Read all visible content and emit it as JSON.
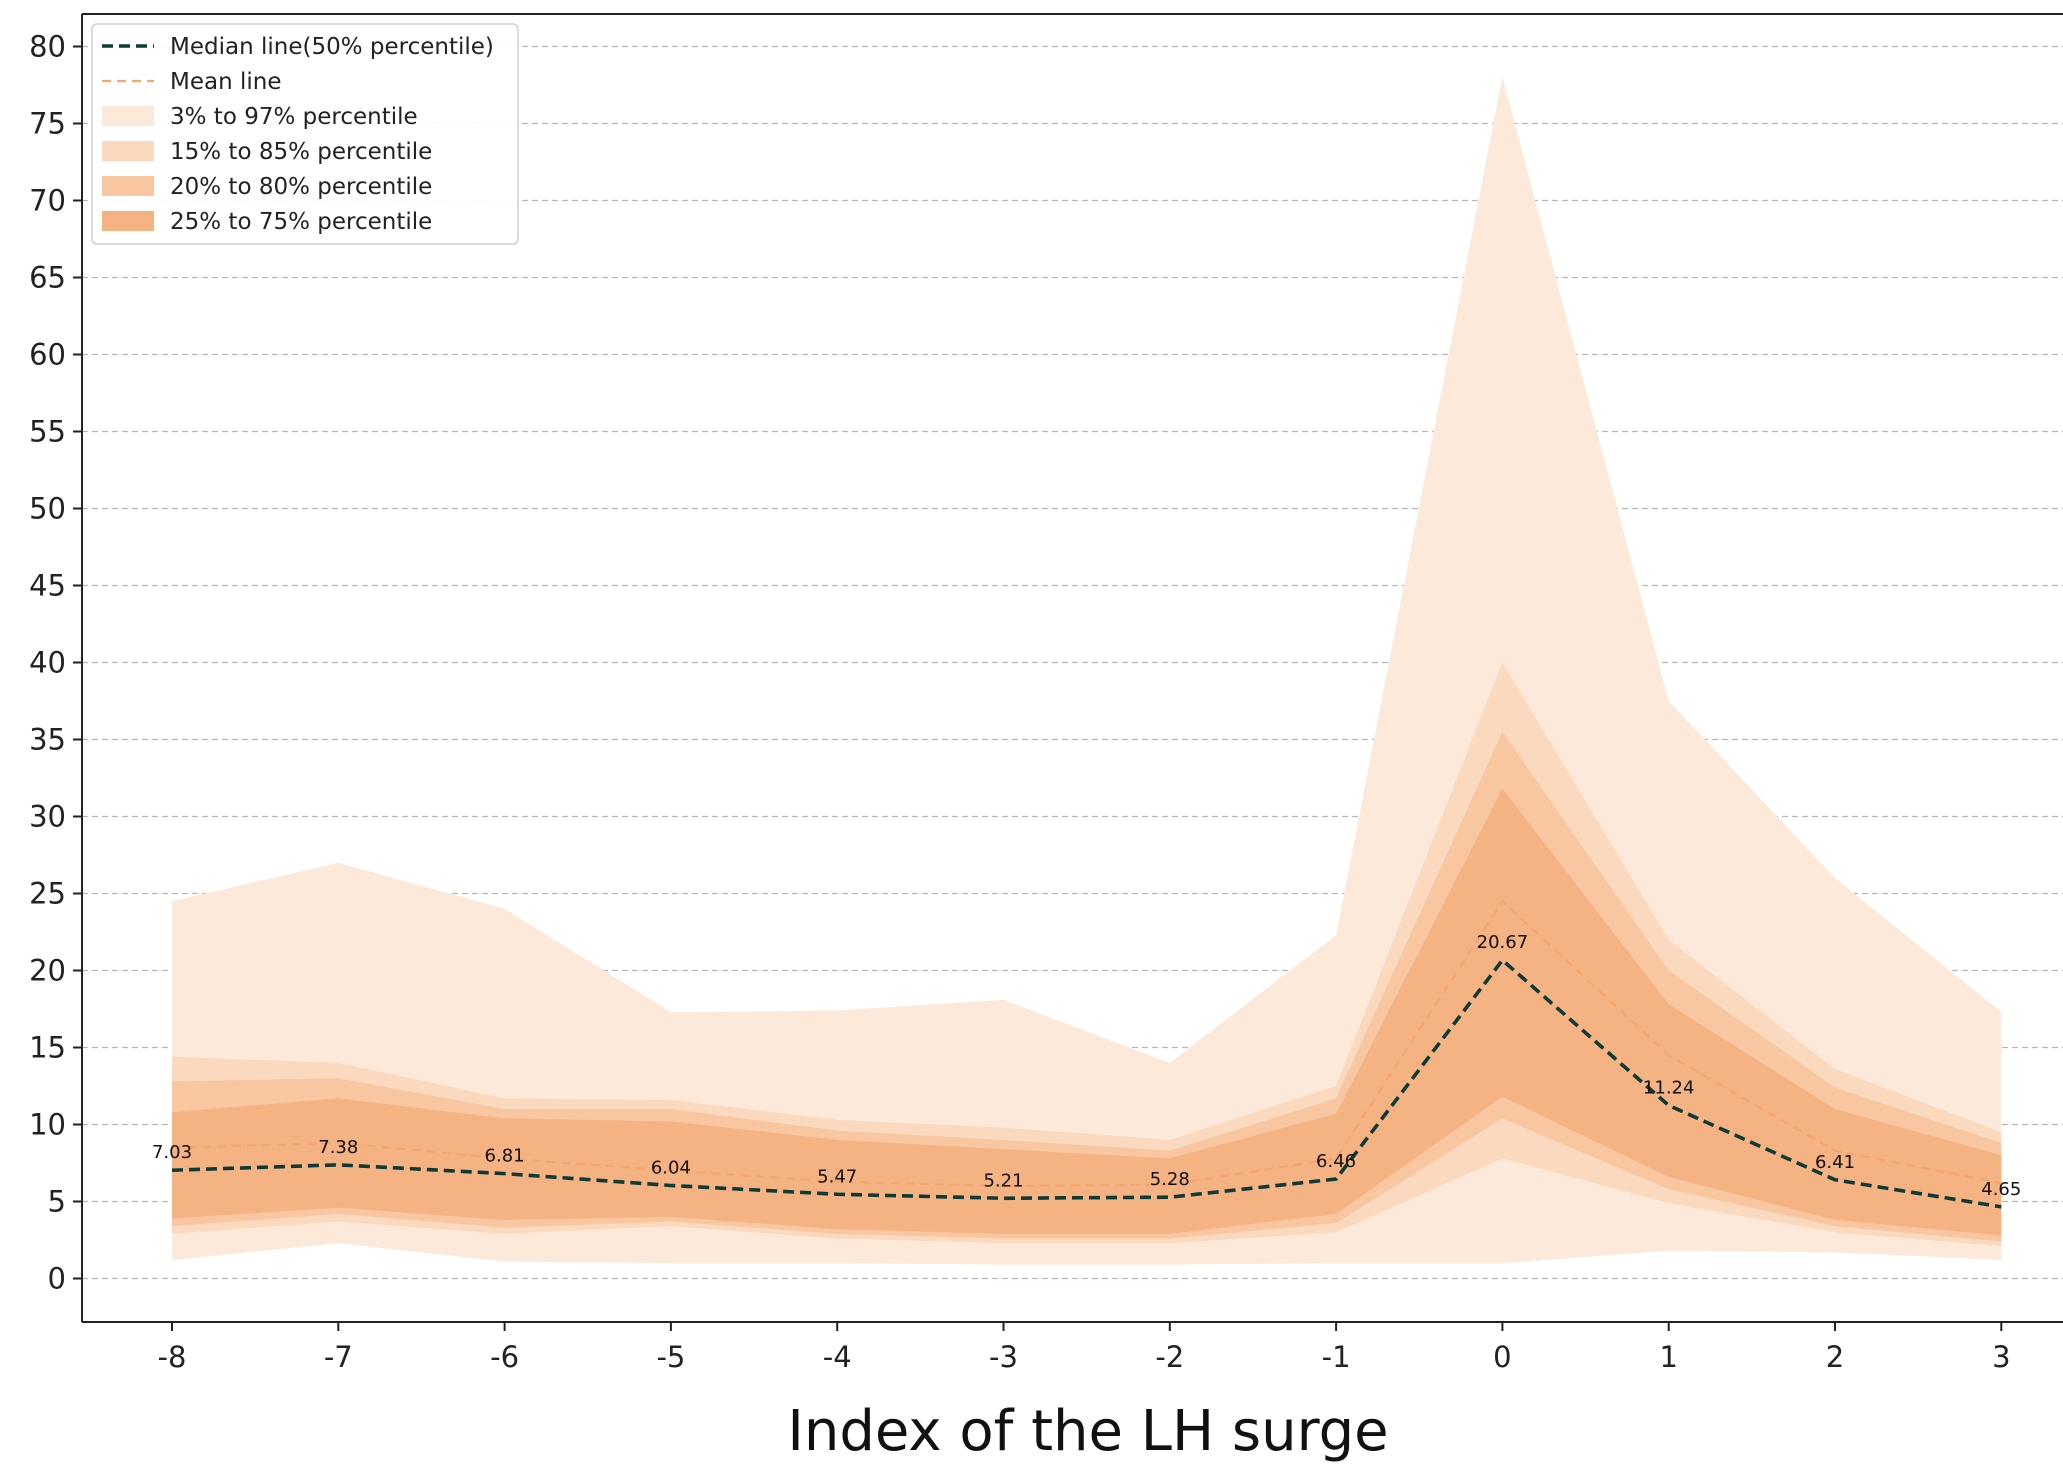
{
  "chart_data": {
    "type": "line",
    "xlabel": "Index of the LH surge",
    "ylabel": "",
    "x": [
      -8,
      -7,
      -6,
      -5,
      -4,
      -3,
      -2,
      -1,
      0,
      1,
      2,
      3
    ],
    "x_tick_labels": [
      "-8",
      "-7",
      "-6",
      "-5",
      "-4",
      "-3",
      "-2",
      "-1",
      "0",
      "1",
      "2",
      "3"
    ],
    "y_ticks": [
      0,
      5,
      10,
      15,
      20,
      25,
      30,
      35,
      40,
      45,
      50,
      55,
      60,
      65,
      70,
      75,
      80
    ],
    "ylim": [
      -3,
      80
    ],
    "grid": "horizontal dashed",
    "legend_position": "top-left",
    "series": [
      {
        "name": "Median line(50% percentile)",
        "style": "dashed",
        "color": "#0e3b35",
        "values": [
          7.03,
          7.38,
          6.81,
          6.04,
          5.47,
          5.21,
          5.28,
          6.46,
          20.67,
          11.24,
          6.41,
          4.65
        ],
        "labels": [
          "7.03",
          "7.38",
          "6.81",
          "6.04",
          "5.47",
          "5.21",
          "5.28",
          "6.46",
          "20.67",
          "11.24",
          "6.41",
          "4.65"
        ]
      },
      {
        "name": "Mean line",
        "style": "dashed",
        "color": "#f5a66d",
        "values": [
          8.5,
          8.8,
          7.8,
          7.0,
          6.3,
          6.0,
          6.1,
          7.8,
          24.5,
          14.5,
          8.3,
          6.2
        ]
      }
    ],
    "bands": [
      {
        "name": "3% to 97% percentile",
        "color": "#fde9d9",
        "lower": [
          1.2,
          2.3,
          1.1,
          1.0,
          1.0,
          0.9,
          0.9,
          1.0,
          1.0,
          1.8,
          1.7,
          1.2
        ],
        "upper": [
          24.5,
          27.0,
          24.0,
          17.3,
          17.4,
          18.1,
          14.0,
          22.3,
          78.0,
          37.5,
          26.0,
          17.3
        ]
      },
      {
        "name": "15% to 85% percentile",
        "color": "#fbd9be",
        "lower": [
          2.9,
          3.7,
          2.9,
          3.4,
          2.6,
          2.3,
          2.3,
          3.0,
          7.8,
          4.9,
          3.0,
          2.1
        ],
        "upper": [
          14.4,
          14.0,
          11.7,
          11.6,
          10.3,
          9.8,
          9.0,
          12.5,
          40.0,
          22.0,
          13.6,
          9.5
        ]
      },
      {
        "name": "20% to 80% percentile",
        "color": "#f8c7a1",
        "lower": [
          3.4,
          4.2,
          3.3,
          3.7,
          2.9,
          2.6,
          2.6,
          3.6,
          10.4,
          5.8,
          3.4,
          2.4
        ],
        "upper": [
          12.8,
          13.0,
          11.0,
          11.0,
          9.6,
          9.0,
          8.3,
          11.7,
          35.5,
          20.0,
          12.4,
          8.8
        ]
      },
      {
        "name": "25% to 75% percentile",
        "color": "#f5b283",
        "lower": [
          3.9,
          4.6,
          3.8,
          4.0,
          3.2,
          2.9,
          2.9,
          4.2,
          11.8,
          6.6,
          3.8,
          2.8
        ],
        "upper": [
          10.8,
          11.7,
          10.4,
          10.2,
          9.0,
          8.4,
          7.8,
          10.7,
          31.8,
          17.8,
          11.0,
          8.0
        ]
      }
    ]
  }
}
